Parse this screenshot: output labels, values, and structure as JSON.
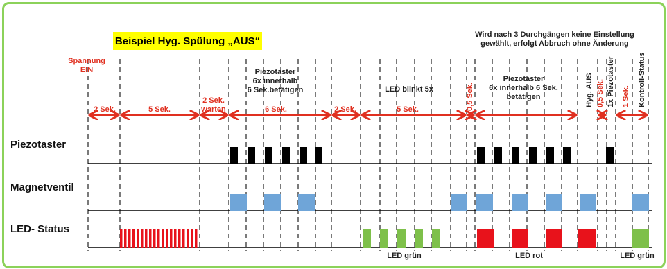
{
  "title": "Beispiel Hyg. Spülung „AUS“",
  "top_right_note": "Wird nach 3 Durchgängen keine Einstellung\ngewählt, erfolgt Abbruch ohne Änderung",
  "spannung_label": "Spannung\nEIN",
  "rows": {
    "piezo": "Piezotaster",
    "magnet": "Magnetventil",
    "led": "LED- Status"
  },
  "phase_notes": {
    "piezo_first": "Piezotaster\n6x innerhalb\n6 Sek.betätigen",
    "led_blinkt": "LED blinkt 5x",
    "piezo_second": "Piezotaster\n6x innerhalb 6 Sek.\nbetätigen"
  },
  "durations": {
    "d1": "2 Sek.",
    "d2": "5 Sek.",
    "d3": "2 Sek.\nwarten",
    "d4": "6 Sek.",
    "d5": "2 Sek.",
    "d6": "5 Sek.",
    "d7": "0,5 Sek.",
    "d8": "0,5 Sek.",
    "d9": "1 Sek."
  },
  "vertical_labels": {
    "hyg_aus": "Hyg. AUS",
    "piezotaster_1x": "1x Piezotaster",
    "kontroll_status": "Kontroll-Status"
  },
  "bottom_labels": {
    "led_gruen_1": "LED grün",
    "led_rot": "LED rot",
    "led_gruen_2": "LED grün"
  },
  "colors": {
    "frame": "#8cd25a",
    "title_bg": "#ffff00",
    "arrow": "#e03020",
    "piezo_pulse": "#000000",
    "magnet_pulse": "#6fa5d8",
    "led_red": "#e8121b",
    "led_green": "#7ec04a"
  }
}
